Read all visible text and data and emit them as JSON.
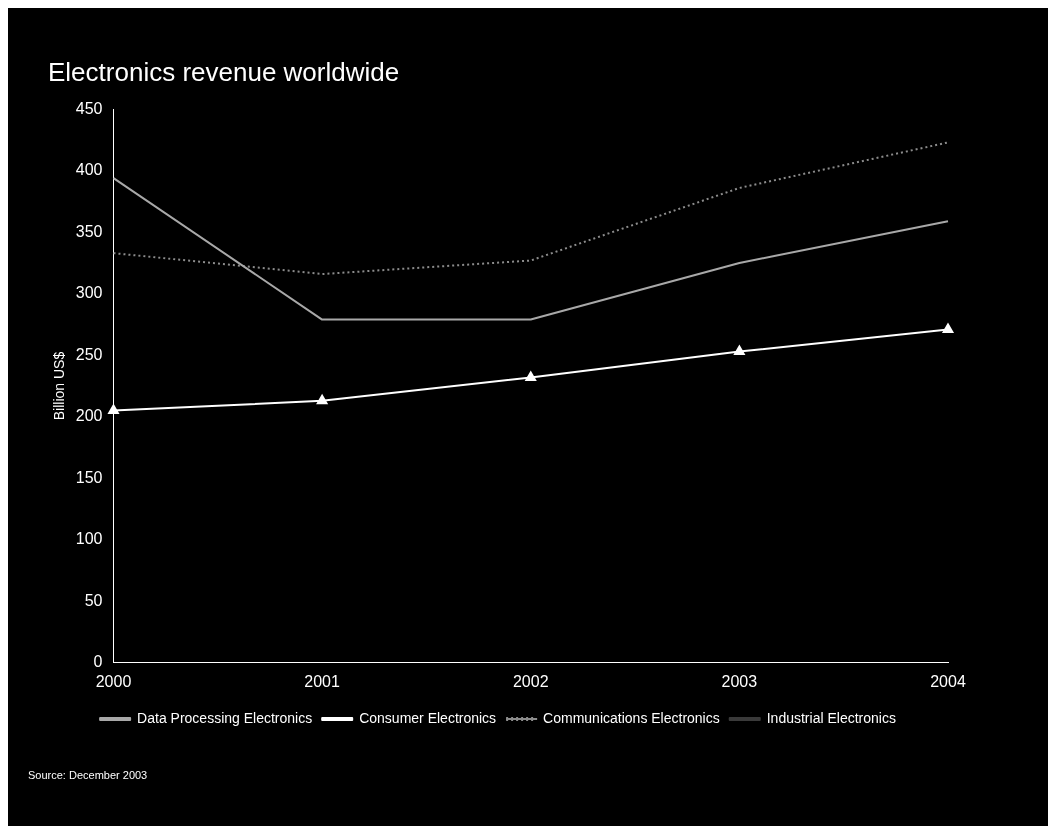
{
  "chart_data": {
    "type": "line",
    "title": "Electronics revenue worldwide",
    "ylabel": "Billion US$",
    "categories": [
      "2000",
      "2001",
      "2002",
      "2003",
      "2004"
    ],
    "series": [
      {
        "name": "Data Processing Electronics",
        "color": "#a8a8a8",
        "values": [
          394,
          279,
          279,
          325,
          359
        ]
      },
      {
        "name": "Consumer Electronics",
        "color": "#ffffff",
        "values": [
          205,
          213,
          232,
          253,
          271
        ],
        "marker": "triangle"
      },
      {
        "name": "Communications Electronics",
        "color": "#8c8c8c",
        "values": [
          333,
          316,
          327,
          386,
          423
        ],
        "line_style": "dotted"
      },
      {
        "name": "Industrial Electronics",
        "color": "#3a3a3a",
        "values": [
          null,
          null,
          null,
          null,
          null
        ]
      }
    ],
    "ylim": [
      0,
      450
    ],
    "yticks": [
      0,
      50,
      100,
      150,
      200,
      250,
      300,
      350,
      400,
      450
    ],
    "grid": false,
    "legend": "bottom",
    "marker": "none",
    "annotations": [
      "Source: December 2003"
    ]
  }
}
